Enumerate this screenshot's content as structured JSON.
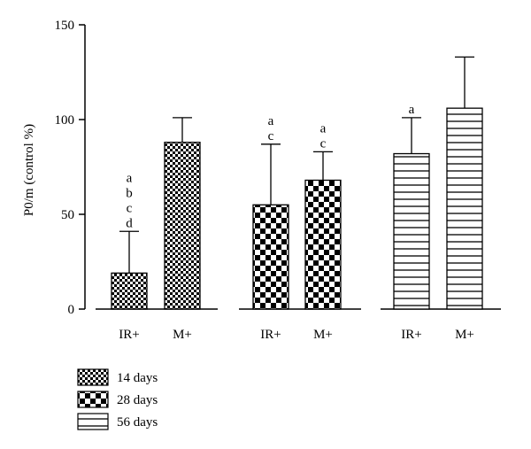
{
  "chart_data": {
    "type": "bar",
    "ylabel": "P0/m (control %)",
    "ylim": [
      0,
      150
    ],
    "yticks": [
      "0",
      "50",
      "100",
      "150"
    ],
    "groups": [
      {
        "name": "14 days",
        "pattern": "fine-checker",
        "bars": [
          {
            "category": "IR+",
            "value": 19,
            "error": 22,
            "letters": [
              "a",
              "b",
              "c",
              "d"
            ]
          },
          {
            "category": "M+",
            "value": 88,
            "error": 13,
            "letters": []
          }
        ]
      },
      {
        "name": "28 days",
        "pattern": "coarse-checker",
        "bars": [
          {
            "category": "IR+",
            "value": 55,
            "error": 32,
            "letters": [
              "a",
              "c"
            ]
          },
          {
            "category": "M+",
            "value": 68,
            "error": 15,
            "letters": [
              "a",
              "c"
            ]
          }
        ]
      },
      {
        "name": "56 days",
        "pattern": "horizontal-lines",
        "bars": [
          {
            "category": "IR+",
            "value": 82,
            "error": 19,
            "letters": [
              "a"
            ]
          },
          {
            "category": "M+",
            "value": 106,
            "error": 27,
            "letters": []
          }
        ]
      }
    ],
    "legend": {
      "position": "bottom-left",
      "entries": [
        "14 days",
        "28 days",
        "56 days"
      ]
    },
    "grid": false
  }
}
